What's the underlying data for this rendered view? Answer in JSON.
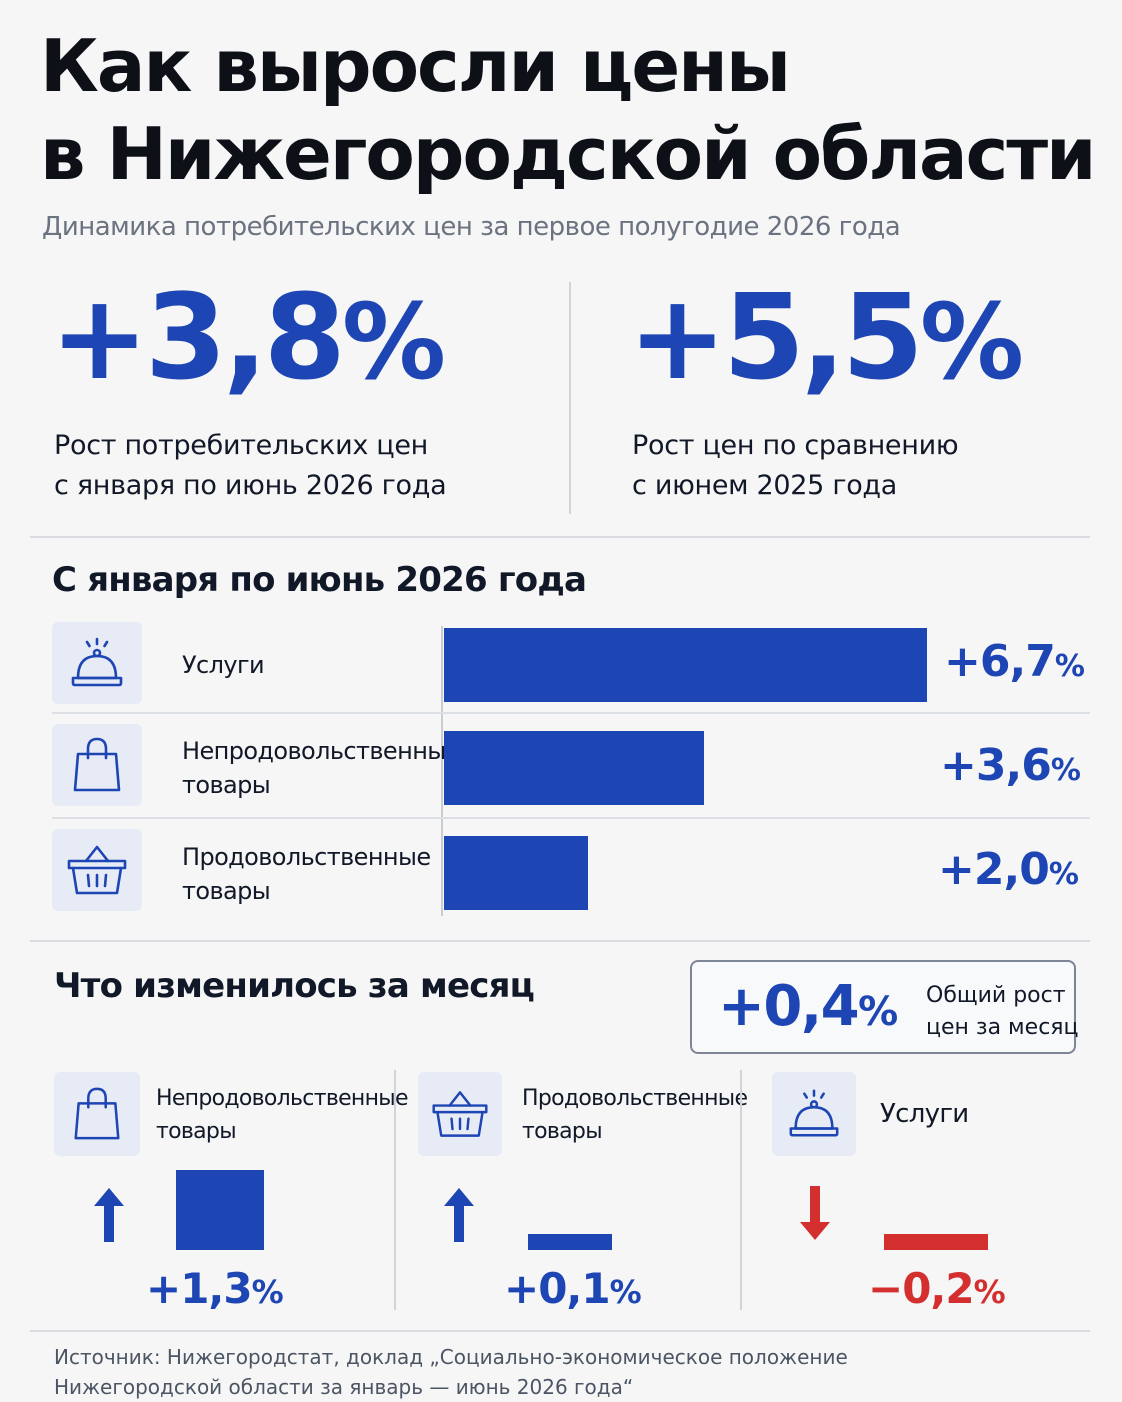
{
  "header": {
    "title_line1": "Как выросли цены",
    "title_line2": "в Нижегородской области",
    "subtitle": "Динамика потребительских цен за первое полугодие 2026 года"
  },
  "key_figures": [
    {
      "value": "+3,8",
      "unit": "%",
      "desc_line1": "Рост потребительских цен",
      "desc_line2": "с января по июнь 2026 года"
    },
    {
      "value": "+5,5",
      "unit": "%",
      "desc_line1": "Рост цен по сравнению",
      "desc_line2": "с июнем 2025 года"
    }
  ],
  "section_period": {
    "title": "С января по июнь 2026 года",
    "rows": [
      {
        "icon": "service-bell-icon",
        "label_line1": "Услуги",
        "label_line2": "",
        "value_text": "+6,7",
        "unit": "%"
      },
      {
        "icon": "shopping-bag-icon",
        "label_line1": "Непродовольственные",
        "label_line2": "товары",
        "value_text": "+3,6",
        "unit": "%"
      },
      {
        "icon": "shopping-basket-icon",
        "label_line1": "Продовольственные",
        "label_line2": "товары",
        "value_text": "+2,0",
        "unit": "%"
      }
    ]
  },
  "section_month": {
    "title": "Что изменилось за месяц",
    "total_value": "+0,4",
    "total_unit": "%",
    "total_desc_line1": "Общий рост",
    "total_desc_line2": "цен за месяц",
    "items": [
      {
        "icon": "shopping-bag-icon",
        "label_line1": "Непродовольственные",
        "label_line2": "товары",
        "direction": "up",
        "value_text": "+1,3",
        "unit": "%",
        "color": "#1d45b3"
      },
      {
        "icon": "shopping-basket-icon",
        "label_line1": "Продовольственные",
        "label_line2": "товары",
        "direction": "up",
        "value_text": "+0,1",
        "unit": "%",
        "color": "#1d45b3"
      },
      {
        "icon": "service-bell-icon",
        "label_line1": "Услуги",
        "label_line2": "",
        "direction": "down",
        "value_text": "−0,2",
        "unit": "%",
        "color": "#d32f2f"
      }
    ]
  },
  "source_line1": "Источник: Нижегородстат, доклад „Социально-экономическое положение",
  "source_line2": "Нижегородской области за январь — июнь 2026 года“",
  "colors": {
    "accent": "#1d45b3",
    "negative": "#d32f2f"
  },
  "chart_data": [
    {
      "type": "bar",
      "orientation": "horizontal",
      "title": "С января по июнь 2026 года",
      "categories": [
        "Услуги",
        "Непродовольственные товары",
        "Продовольственные товары"
      ],
      "values": [
        6.7,
        3.6,
        2.0
      ],
      "unit": "%",
      "grid": false
    },
    {
      "type": "bar",
      "title": "Что изменилось за месяц",
      "categories": [
        "Непродовольственные товары",
        "Продовольственные товары",
        "Услуги"
      ],
      "values": [
        1.3,
        0.1,
        -0.2
      ],
      "unit": "%",
      "grid": false
    }
  ]
}
